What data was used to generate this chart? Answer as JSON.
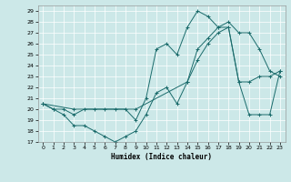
{
  "xlabel": "Humidex (Indice chaleur)",
  "xlim": [
    -0.5,
    23.5
  ],
  "ylim": [
    17,
    29.5
  ],
  "yticks": [
    17,
    18,
    19,
    20,
    21,
    22,
    23,
    24,
    25,
    26,
    27,
    28,
    29
  ],
  "xticks": [
    0,
    1,
    2,
    3,
    4,
    5,
    6,
    7,
    8,
    9,
    10,
    11,
    12,
    13,
    14,
    15,
    16,
    17,
    18,
    19,
    20,
    21,
    22,
    23
  ],
  "bg_color": "#cce8e8",
  "line_color": "#1a6b6b",
  "line1_x": [
    0,
    1,
    2,
    3,
    4,
    5,
    6,
    7,
    8,
    9,
    10,
    11,
    12,
    13,
    14,
    15,
    16,
    17,
    18,
    19,
    20,
    21,
    22,
    23
  ],
  "line1_y": [
    20.5,
    20.0,
    20.0,
    19.5,
    20.0,
    20.0,
    20.0,
    20.0,
    20.0,
    19.0,
    21.0,
    25.5,
    26.0,
    25.0,
    27.5,
    29.0,
    28.5,
    27.5,
    28.0,
    27.0,
    27.0,
    25.5,
    23.5,
    23.0
  ],
  "line2_x": [
    0,
    1,
    2,
    3,
    4,
    5,
    6,
    7,
    8,
    9,
    10,
    11,
    12,
    13,
    14,
    15,
    16,
    17,
    18,
    19,
    20,
    21,
    22,
    23
  ],
  "line2_y": [
    20.5,
    20.0,
    19.5,
    18.5,
    18.5,
    18.0,
    17.5,
    17.0,
    17.5,
    18.0,
    19.5,
    21.5,
    22.0,
    20.5,
    22.5,
    25.5,
    26.5,
    27.5,
    27.5,
    22.5,
    19.5,
    19.5,
    19.5,
    23.5
  ],
  "line3_x": [
    0,
    3,
    9,
    14,
    15,
    16,
    17,
    18,
    19,
    20,
    21,
    22,
    23
  ],
  "line3_y": [
    20.5,
    20.0,
    20.0,
    22.5,
    24.5,
    26.0,
    27.0,
    27.5,
    22.5,
    22.5,
    23.0,
    23.0,
    23.5
  ]
}
